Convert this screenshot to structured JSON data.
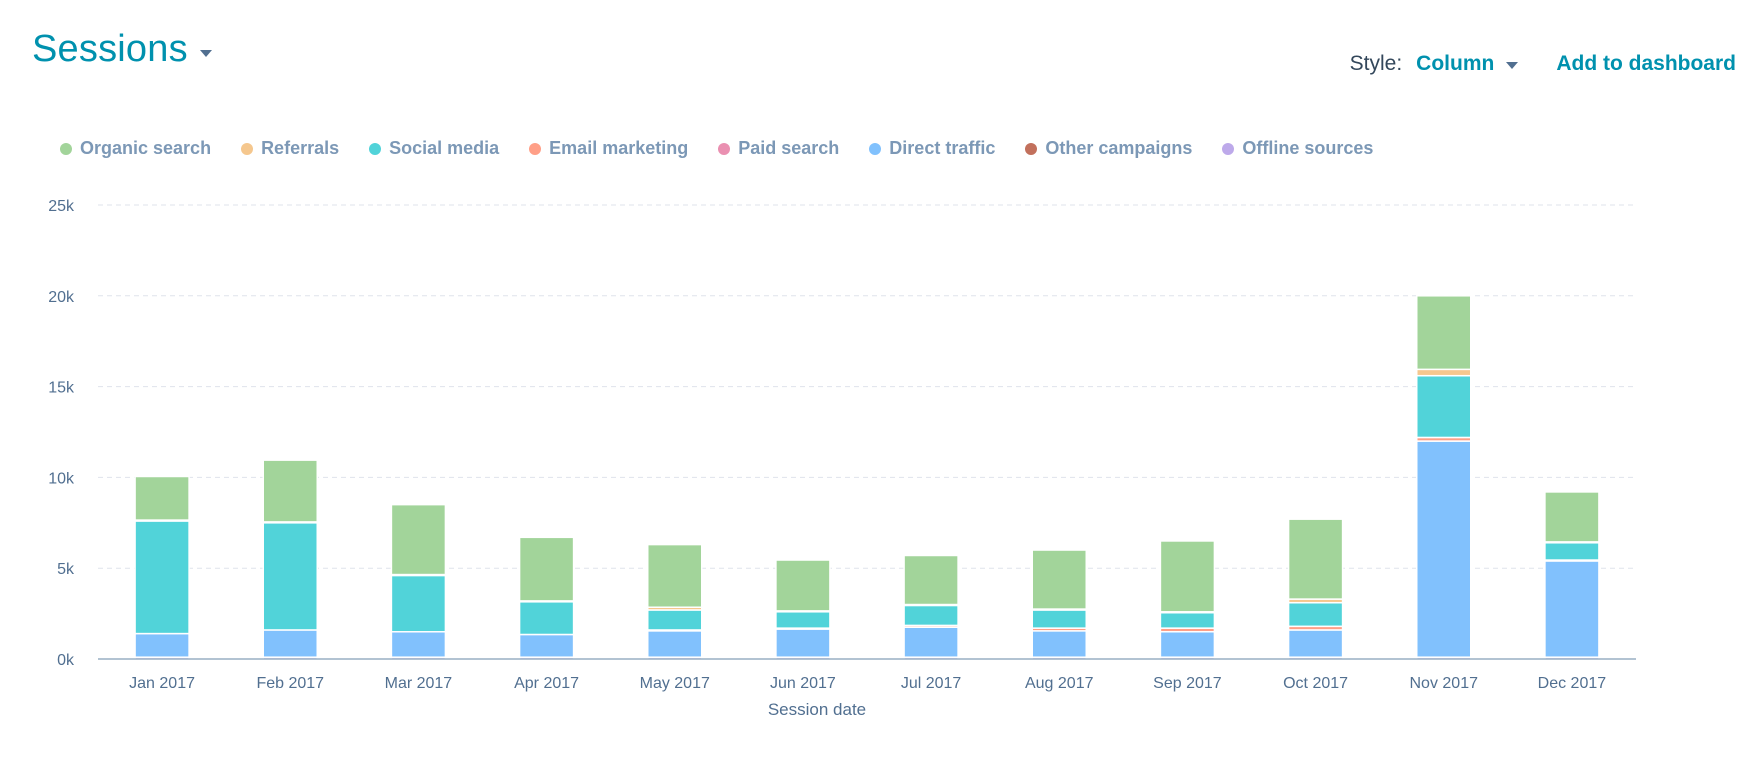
{
  "header": {
    "title": "Sessions",
    "style_label": "Style:",
    "style_value": "Column",
    "add_to_dashboard": "Add to dashboard"
  },
  "colors": {
    "accent": "#0091ae",
    "Organic search": "#a2d49a",
    "Referrals": "#f5c78e",
    "Social media": "#51d3d9",
    "Email marketing": "#ff9f87",
    "Paid search": "#ea90b1",
    "Direct traffic": "#81c1fd",
    "Other campaigns": "#c2705c",
    "Offline sources": "#bda9ea"
  },
  "chart_data": {
    "type": "bar",
    "stacked": true,
    "title": "",
    "xlabel": "Session date",
    "ylabel": "",
    "ylim": [
      0,
      25000
    ],
    "yticks": [
      "0k",
      "5k",
      "10k",
      "15k",
      "20k",
      "25k"
    ],
    "grid": true,
    "legend_position": "top-left",
    "categories": [
      "Jan 2017",
      "Feb 2017",
      "Mar 2017",
      "Apr 2017",
      "May 2017",
      "Jun 2017",
      "Jul 2017",
      "Aug 2017",
      "Sep 2017",
      "Oct 2017",
      "Nov 2017",
      "Dec 2017"
    ],
    "series": [
      {
        "name": "Offline sources",
        "values": [
          100,
          100,
          100,
          100,
          100,
          100,
          100,
          100,
          100,
          100,
          100,
          100
        ]
      },
      {
        "name": "Other campaigns",
        "values": [
          0,
          0,
          0,
          0,
          0,
          0,
          0,
          0,
          0,
          0,
          0,
          0
        ]
      },
      {
        "name": "Direct traffic",
        "values": [
          1300,
          1500,
          1400,
          1250,
          1450,
          1550,
          1650,
          1450,
          1400,
          1500,
          11900,
          5300
        ]
      },
      {
        "name": "Paid search",
        "values": [
          0,
          0,
          0,
          0,
          0,
          0,
          0,
          0,
          0,
          0,
          0,
          0
        ]
      },
      {
        "name": "Email marketing",
        "values": [
          0,
          0,
          0,
          0,
          50,
          50,
          100,
          150,
          200,
          200,
          200,
          50
        ]
      },
      {
        "name": "Social media",
        "values": [
          6200,
          5900,
          3100,
          1800,
          1100,
          900,
          1100,
          1000,
          850,
          1300,
          3400,
          950
        ]
      },
      {
        "name": "Referrals",
        "values": [
          50,
          50,
          50,
          50,
          150,
          50,
          50,
          50,
          50,
          200,
          350,
          50
        ]
      },
      {
        "name": "Organic search",
        "values": [
          2400,
          3400,
          3850,
          3500,
          3450,
          2800,
          2700,
          3250,
          3900,
          4400,
          4050,
          2750
        ]
      }
    ]
  }
}
